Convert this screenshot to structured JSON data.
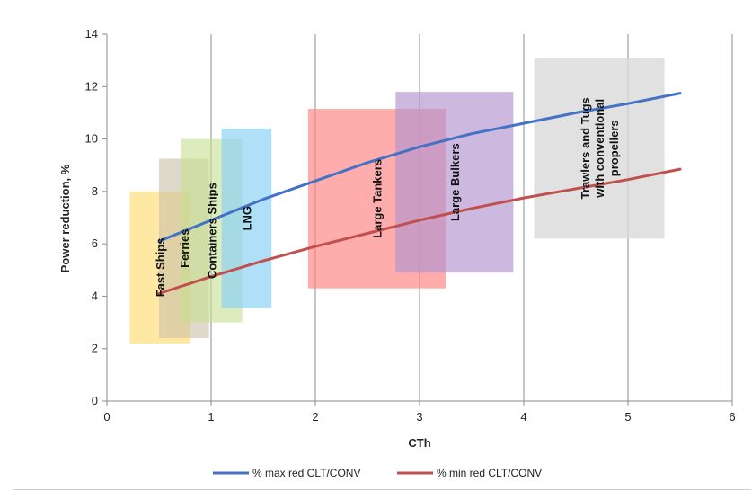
{
  "chart_data": {
    "type": "line",
    "title": "",
    "xlabel": "CTh",
    "ylabel": "Power reduction, %",
    "xlim": [
      0,
      6
    ],
    "ylim": [
      0,
      14
    ],
    "xticks": [
      0,
      1,
      2,
      3,
      4,
      5,
      6
    ],
    "yticks": [
      0,
      2,
      4,
      6,
      8,
      10,
      12,
      14
    ],
    "grid": "vertical",
    "legend": "bottom",
    "series": [
      {
        "name": "% max red CLT/CONV",
        "color": "#4472C4",
        "x": [
          0.5,
          1.0,
          1.5,
          2.0,
          2.5,
          3.0,
          3.5,
          4.0,
          4.5,
          5.0,
          5.5
        ],
        "y": [
          6.1,
          6.9,
          7.7,
          8.4,
          9.1,
          9.7,
          10.2,
          10.6,
          11.0,
          11.35,
          11.75
        ]
      },
      {
        "name": "% min red CLT/CONV",
        "color": "#C0504D",
        "x": [
          0.5,
          1.0,
          1.5,
          2.0,
          2.5,
          3.0,
          3.5,
          4.0,
          4.5,
          5.0,
          5.5
        ],
        "y": [
          4.1,
          4.75,
          5.35,
          5.9,
          6.4,
          6.9,
          7.35,
          7.75,
          8.1,
          8.45,
          8.85
        ]
      }
    ],
    "regions": [
      {
        "label": [
          "Fast Ships"
        ],
        "x": [
          0.22,
          0.8
        ],
        "y": [
          2.2,
          8.0
        ],
        "color": "#FFD966",
        "opacity": 0.6
      },
      {
        "label": [
          "Ferries"
        ],
        "x": [
          0.5,
          0.98
        ],
        "y": [
          2.4,
          9.25
        ],
        "color": "#C9BFA8",
        "opacity": 0.6
      },
      {
        "label": [
          "Containers  Ships"
        ],
        "x": [
          0.71,
          1.3
        ],
        "y": [
          3.0,
          10.0
        ],
        "color": "#C6E08F",
        "opacity": 0.6
      },
      {
        "label": [
          "LNG"
        ],
        "x": [
          1.1,
          1.58
        ],
        "y": [
          3.55,
          10.4
        ],
        "color": "#8FD3F4",
        "opacity": 0.7
      },
      {
        "label": [
          "Large Tankers"
        ],
        "x": [
          1.93,
          3.25
        ],
        "y": [
          4.3,
          11.15
        ],
        "color": "#FF7F7F",
        "opacity": 0.65
      },
      {
        "label": [
          "Large Bulkers"
        ],
        "x": [
          2.77,
          3.9
        ],
        "y": [
          4.9,
          11.8
        ],
        "color": "#B293CF",
        "opacity": 0.65
      },
      {
        "label": [
          "Trawlers and Tugs",
          "with conventional",
          "propellers"
        ],
        "x": [
          4.1,
          5.35
        ],
        "y": [
          6.2,
          13.1
        ],
        "color": "#D9D9D9",
        "opacity": 0.8
      }
    ]
  }
}
